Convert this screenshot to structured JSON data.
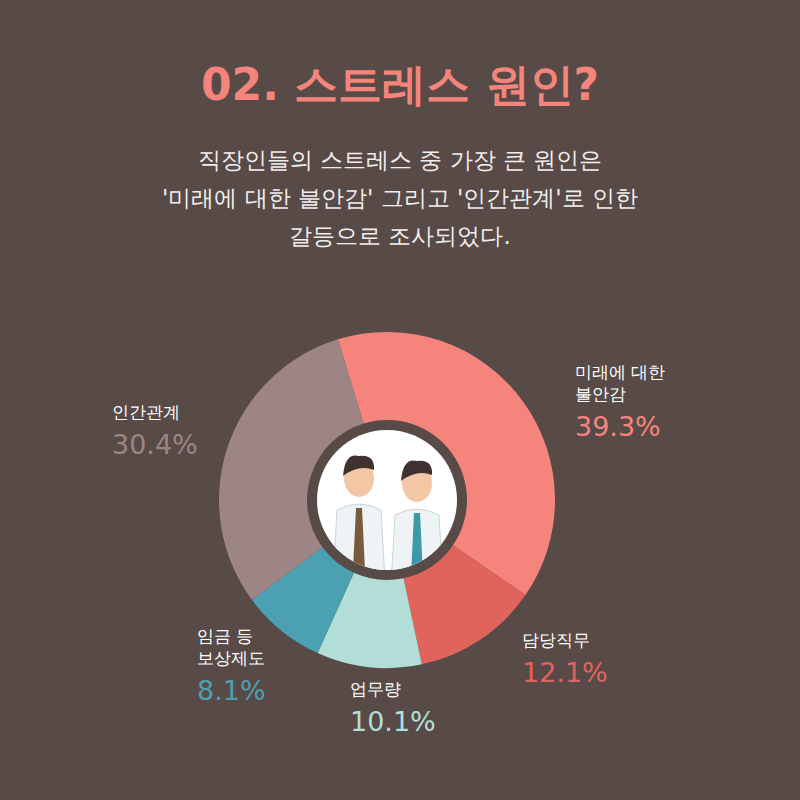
{
  "chart_data": {
    "type": "pie",
    "title": "02. 스트레스 원인?",
    "subtitle": [
      "직장인들의 스트레스 중 가장 큰 원인은",
      "'미래에 대한 불안감' 그리고 '인간관계'로 인한",
      "갈등으로 조사되었다."
    ],
    "categories": [
      "미래에 대한 불안감",
      "담당직무",
      "업무량",
      "임금 등 보상제도",
      "인간관계"
    ],
    "values": [
      39.3,
      12.1,
      10.1,
      8.1,
      30.4
    ],
    "value_labels": [
      "39.3%",
      "12.1%",
      "10.1%",
      "8.1%",
      "30.4%"
    ],
    "colors": [
      "#f5857c",
      "#e0645c",
      "#b3ddd7",
      "#4ba0b1",
      "#9c8584"
    ],
    "data_labels": true
  }
}
